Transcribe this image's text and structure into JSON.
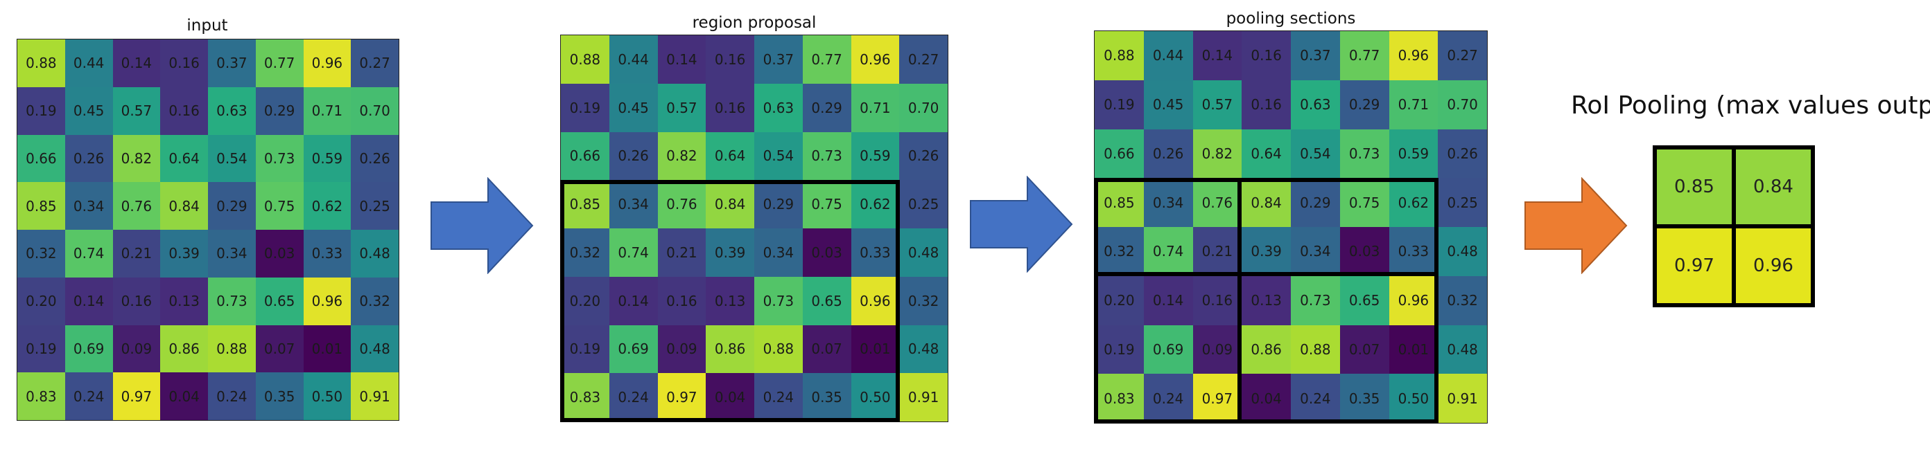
{
  "panels": [
    {
      "title": "input"
    },
    {
      "title": "region proposal"
    },
    {
      "title": "pooling sections"
    }
  ],
  "matrix": [
    [
      "0.88",
      "0.44",
      "0.14",
      "0.16",
      "0.37",
      "0.77",
      "0.96",
      "0.27"
    ],
    [
      "0.19",
      "0.45",
      "0.57",
      "0.16",
      "0.63",
      "0.29",
      "0.71",
      "0.70"
    ],
    [
      "0.66",
      "0.26",
      "0.82",
      "0.64",
      "0.54",
      "0.73",
      "0.59",
      "0.26"
    ],
    [
      "0.85",
      "0.34",
      "0.76",
      "0.84",
      "0.29",
      "0.75",
      "0.62",
      "0.25"
    ],
    [
      "0.32",
      "0.74",
      "0.21",
      "0.39",
      "0.34",
      "0.03",
      "0.33",
      "0.48"
    ],
    [
      "0.20",
      "0.14",
      "0.16",
      "0.13",
      "0.73",
      "0.65",
      "0.96",
      "0.32"
    ],
    [
      "0.19",
      "0.69",
      "0.09",
      "0.86",
      "0.88",
      "0.07",
      "0.01",
      "0.48"
    ],
    [
      "0.83",
      "0.24",
      "0.97",
      "0.04",
      "0.24",
      "0.35",
      "0.50",
      "0.91"
    ]
  ],
  "output": {
    "title": "RoI Pooling (max values output)",
    "values": [
      [
        "0.85",
        "0.84"
      ],
      [
        "0.97",
        "0.96"
      ]
    ]
  },
  "colors": {
    "arrow_blue": "#4472c4",
    "arrow_orange": "#ed7d31"
  }
}
